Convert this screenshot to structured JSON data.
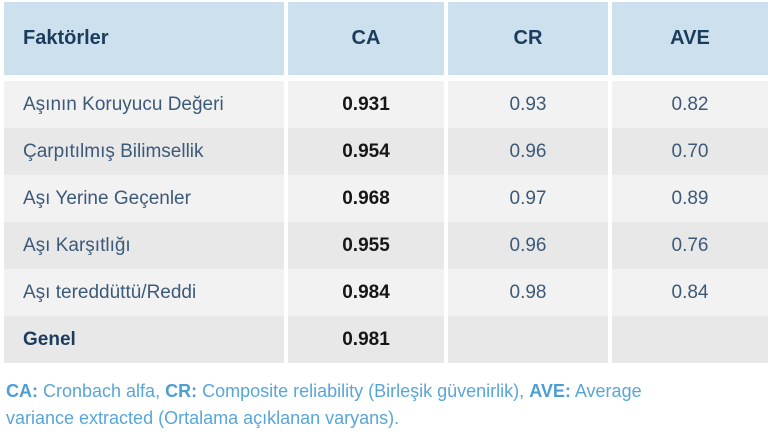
{
  "table": {
    "columns": {
      "factor": "Faktörler",
      "ca": "CA",
      "cr": "CR",
      "ave": "AVE"
    },
    "rows": [
      {
        "label": "Aşının Koruyucu Değeri",
        "ca": "0.931",
        "cr": "0.93",
        "ave": "0.82",
        "emphasis": false
      },
      {
        "label": "Çarpıtılmış Bilimsellik",
        "ca": "0.954",
        "cr": "0.96",
        "ave": "0.70",
        "emphasis": false
      },
      {
        "label": "Aşı Yerine Geçenler",
        "ca": "0.968",
        "cr": "0.97",
        "ave": "0.89",
        "emphasis": false
      },
      {
        "label": "Aşı Karşıtlığı",
        "ca": "0.955",
        "cr": "0.96",
        "ave": "0.76",
        "emphasis": false
      },
      {
        "label": "Aşı tereddüttü/Reddi",
        "ca": "0.984",
        "cr": "0.98",
        "ave": "0.84",
        "emphasis": false
      },
      {
        "label": "Genel",
        "ca": "0.981",
        "cr": "",
        "ave": "",
        "emphasis": true
      }
    ]
  },
  "footnote": {
    "segments": [
      {
        "text": "CA:",
        "bold": true
      },
      {
        "text": " Cronbach alfa, ",
        "bold": false
      },
      {
        "text": "CR:",
        "bold": true
      },
      {
        "text": " Composite reliability (Birleşik güvenirlik), ",
        "bold": false
      },
      {
        "text": "AVE:",
        "bold": true
      },
      {
        "text": " Average variance extracted (Ortalama açıklanan varyans).",
        "bold": false
      }
    ]
  },
  "colors": {
    "header_bg": "#cde0ed",
    "header_text": "#1c3c5e",
    "row_odd_bg": "#f3f2f2",
    "row_even_bg": "#e8e8e9",
    "label_text": "#3c5a78",
    "ca_value_text": "#161616",
    "footnote_text": "#58a6d8"
  }
}
